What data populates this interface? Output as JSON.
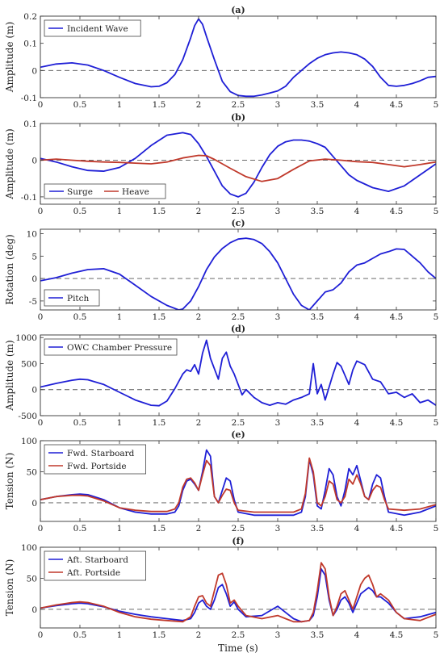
{
  "figure": {
    "xlabel": "Time (s)"
  },
  "chart_data": [
    {
      "type": "line",
      "panel": "(a)",
      "title": "(a)",
      "ylabel": "Amplitude (m)",
      "xlim": [
        0,
        5
      ],
      "ylim": [
        -0.1,
        0.2
      ],
      "xticks": [
        0,
        0.5,
        1,
        1.5,
        2,
        2.5,
        3,
        3.5,
        4,
        4.5,
        5
      ],
      "yticks": [
        -0.1,
        0,
        0.1,
        0.2
      ],
      "yticklabels": [
        "-0.1",
        "0",
        "0.1",
        "0.2"
      ],
      "zero_line": true,
      "legend_position": "top-left",
      "series": [
        {
          "name": "Incident Wave",
          "color": "#1f1fd6",
          "x": [
            0,
            0.2,
            0.4,
            0.6,
            0.8,
            1.0,
            1.2,
            1.4,
            1.5,
            1.6,
            1.7,
            1.8,
            1.9,
            1.95,
            2.0,
            2.05,
            2.1,
            2.2,
            2.3,
            2.4,
            2.5,
            2.6,
            2.7,
            2.8,
            2.9,
            3.0,
            3.1,
            3.2,
            3.3,
            3.4,
            3.5,
            3.6,
            3.7,
            3.8,
            3.9,
            4.0,
            4.1,
            4.2,
            4.3,
            4.4,
            4.5,
            4.6,
            4.7,
            4.8,
            4.9,
            5.0
          ],
          "y": [
            0.012,
            0.024,
            0.028,
            0.02,
            0.0,
            -0.025,
            -0.048,
            -0.06,
            -0.058,
            -0.045,
            -0.015,
            0.04,
            0.12,
            0.165,
            0.19,
            0.17,
            0.125,
            0.04,
            -0.04,
            -0.078,
            -0.092,
            -0.095,
            -0.095,
            -0.09,
            -0.083,
            -0.075,
            -0.058,
            -0.025,
            0.0,
            0.025,
            0.045,
            0.058,
            0.065,
            0.068,
            0.065,
            0.058,
            0.042,
            0.015,
            -0.025,
            -0.055,
            -0.058,
            -0.055,
            -0.048,
            -0.038,
            -0.025,
            -0.022
          ]
        }
      ]
    },
    {
      "type": "line",
      "panel": "(b)",
      "title": "(b)",
      "ylabel": "Amplitude (m)",
      "xlim": [
        0,
        5
      ],
      "ylim": [
        -0.12,
        0.1
      ],
      "xticks": [
        0,
        0.5,
        1,
        1.5,
        2,
        2.5,
        3,
        3.5,
        4,
        4.5,
        5
      ],
      "yticks": [
        -0.1,
        0,
        0.1
      ],
      "yticklabels": [
        "-0.1",
        "0",
        "0.1"
      ],
      "zero_line": true,
      "legend_position": "bottom-left",
      "series": [
        {
          "name": "Surge",
          "color": "#1f1fd6",
          "x": [
            0,
            0.2,
            0.4,
            0.6,
            0.8,
            1.0,
            1.2,
            1.4,
            1.6,
            1.8,
            1.9,
            2.0,
            2.1,
            2.2,
            2.3,
            2.4,
            2.5,
            2.6,
            2.7,
            2.8,
            2.9,
            3.0,
            3.1,
            3.2,
            3.3,
            3.4,
            3.5,
            3.6,
            3.7,
            3.8,
            3.9,
            4.0,
            4.2,
            4.4,
            4.6,
            4.8,
            5.0
          ],
          "y": [
            0.005,
            -0.005,
            -0.018,
            -0.028,
            -0.03,
            -0.02,
            0.005,
            0.04,
            0.068,
            0.075,
            0.07,
            0.045,
            0.01,
            -0.03,
            -0.07,
            -0.092,
            -0.1,
            -0.09,
            -0.06,
            -0.02,
            0.015,
            0.038,
            0.05,
            0.055,
            0.055,
            0.052,
            0.045,
            0.035,
            0.01,
            -0.015,
            -0.04,
            -0.055,
            -0.075,
            -0.085,
            -0.07,
            -0.04,
            -0.01
          ]
        },
        {
          "name": "Heave",
          "color": "#c0392b",
          "x": [
            0,
            0.2,
            0.4,
            0.6,
            0.8,
            1.0,
            1.2,
            1.4,
            1.6,
            1.8,
            2.0,
            2.1,
            2.2,
            2.4,
            2.6,
            2.8,
            3.0,
            3.2,
            3.4,
            3.6,
            3.8,
            4.0,
            4.2,
            4.4,
            4.6,
            4.8,
            5.0
          ],
          "y": [
            0.0,
            0.003,
            0.0,
            -0.003,
            -0.005,
            -0.006,
            -0.008,
            -0.01,
            -0.005,
            0.006,
            0.013,
            0.012,
            0.002,
            -0.022,
            -0.045,
            -0.058,
            -0.05,
            -0.025,
            -0.002,
            0.003,
            0.0,
            -0.004,
            -0.006,
            -0.012,
            -0.018,
            -0.012,
            -0.005
          ]
        }
      ]
    },
    {
      "type": "line",
      "panel": "(c)",
      "title": "(c)",
      "ylabel": "Rotation (deg)",
      "xlim": [
        0,
        5
      ],
      "ylim": [
        -7,
        11
      ],
      "xticks": [
        0,
        0.5,
        1,
        1.5,
        2,
        2.5,
        3,
        3.5,
        4,
        4.5,
        5
      ],
      "yticks": [
        -5,
        0,
        5,
        10
      ],
      "yticklabels": [
        "-5",
        "0",
        "5",
        "10"
      ],
      "zero_line": true,
      "legend_position": "bottom-left",
      "series": [
        {
          "name": "Pitch",
          "color": "#1f1fd6",
          "x": [
            0,
            0.2,
            0.4,
            0.6,
            0.8,
            1.0,
            1.2,
            1.4,
            1.6,
            1.75,
            1.8,
            1.9,
            2.0,
            2.1,
            2.2,
            2.3,
            2.4,
            2.5,
            2.6,
            2.7,
            2.8,
            2.9,
            3.0,
            3.1,
            3.2,
            3.3,
            3.4,
            3.5,
            3.6,
            3.7,
            3.8,
            3.9,
            4.0,
            4.1,
            4.2,
            4.3,
            4.4,
            4.5,
            4.6,
            4.7,
            4.8,
            4.9,
            5.0
          ],
          "y": [
            -0.5,
            0.2,
            1.2,
            2.0,
            2.2,
            1.0,
            -1.5,
            -4.0,
            -6.0,
            -7.0,
            -6.8,
            -5.0,
            -1.8,
            2.0,
            4.8,
            6.7,
            8.0,
            8.8,
            9.0,
            8.7,
            7.8,
            6.0,
            3.5,
            0.0,
            -3.5,
            -6.0,
            -7.0,
            -5.0,
            -3.0,
            -2.5,
            -1.0,
            1.5,
            3.0,
            3.5,
            4.5,
            5.5,
            6.0,
            6.6,
            6.5,
            5.0,
            3.5,
            1.5,
            0.0
          ]
        }
      ]
    },
    {
      "type": "line",
      "panel": "(d)",
      "title": "(d)",
      "ylabel": "Amplitude (m)",
      "xlim": [
        0,
        5
      ],
      "ylim": [
        -500,
        1050
      ],
      "xticks": [
        0,
        0.5,
        1,
        1.5,
        2,
        2.5,
        3,
        3.5,
        4,
        4.5,
        5
      ],
      "yticks": [
        -500,
        0,
        500,
        1000
      ],
      "yticklabels": [
        "-500",
        "0",
        "500",
        "1000"
      ],
      "zero_line": true,
      "legend_position": "top-left",
      "series": [
        {
          "name": "OWC Chamber Pressure",
          "color": "#1f1fd6",
          "x": [
            0,
            0.2,
            0.4,
            0.5,
            0.6,
            0.8,
            1.0,
            1.2,
            1.4,
            1.5,
            1.6,
            1.7,
            1.8,
            1.85,
            1.9,
            1.95,
            2.0,
            2.05,
            2.1,
            2.15,
            2.2,
            2.25,
            2.3,
            2.35,
            2.4,
            2.45,
            2.5,
            2.55,
            2.6,
            2.7,
            2.8,
            2.9,
            3.0,
            3.1,
            3.2,
            3.3,
            3.4,
            3.45,
            3.5,
            3.55,
            3.6,
            3.7,
            3.75,
            3.8,
            3.9,
            3.95,
            4.0,
            4.1,
            4.2,
            4.3,
            4.4,
            4.5,
            4.6,
            4.7,
            4.8,
            4.9,
            5.0
          ],
          "y": [
            50,
            120,
            180,
            200,
            190,
            100,
            -50,
            -200,
            -300,
            -310,
            -220,
            20,
            300,
            380,
            350,
            480,
            300,
            700,
            950,
            600,
            400,
            200,
            600,
            720,
            450,
            300,
            100,
            -100,
            0,
            -150,
            -250,
            -300,
            -250,
            -280,
            -200,
            -150,
            -80,
            500,
            -80,
            100,
            -200,
            300,
            520,
            450,
            100,
            380,
            550,
            480,
            200,
            150,
            -80,
            -50,
            -150,
            -80,
            -250,
            -200,
            -300
          ]
        }
      ]
    },
    {
      "type": "line",
      "panel": "(e)",
      "title": "(e)",
      "ylabel": "Tension (N)",
      "xlim": [
        0,
        5
      ],
      "ylim": [
        -30,
        100
      ],
      "xticks": [
        0,
        0.5,
        1,
        1.5,
        2,
        2.5,
        3,
        3.5,
        4,
        4.5,
        5
      ],
      "yticks": [
        0,
        50,
        100
      ],
      "yticklabels": [
        "0",
        "50",
        "100"
      ],
      "zero_line": true,
      "legend_position": "top-left",
      "series": [
        {
          "name": "Fwd. Starboard",
          "color": "#1f1fd6",
          "x": [
            0,
            0.2,
            0.4,
            0.5,
            0.6,
            0.8,
            1.0,
            1.2,
            1.4,
            1.6,
            1.7,
            1.75,
            1.8,
            1.85,
            1.9,
            1.95,
            2.0,
            2.05,
            2.1,
            2.15,
            2.2,
            2.25,
            2.3,
            2.35,
            2.4,
            2.45,
            2.5,
            2.7,
            3.0,
            3.2,
            3.3,
            3.35,
            3.4,
            3.45,
            3.5,
            3.55,
            3.6,
            3.65,
            3.7,
            3.75,
            3.8,
            3.85,
            3.9,
            3.95,
            4.0,
            4.05,
            4.1,
            4.15,
            4.2,
            4.25,
            4.3,
            4.35,
            4.4,
            4.6,
            4.8,
            5.0
          ],
          "y": [
            5,
            10,
            13,
            14,
            13,
            5,
            -8,
            -15,
            -18,
            -18,
            -15,
            -5,
            20,
            35,
            38,
            30,
            20,
            50,
            85,
            75,
            10,
            0,
            20,
            40,
            35,
            5,
            -15,
            -20,
            -20,
            -20,
            -15,
            10,
            70,
            45,
            -5,
            -10,
            20,
            55,
            45,
            10,
            -5,
            20,
            55,
            45,
            60,
            35,
            10,
            5,
            30,
            45,
            40,
            10,
            -15,
            -20,
            -15,
            -5
          ]
        },
        {
          "name": "Fwd. Portside",
          "color": "#c0392b",
          "x": [
            0,
            0.2,
            0.4,
            0.5,
            0.6,
            0.8,
            1.0,
            1.2,
            1.4,
            1.6,
            1.7,
            1.75,
            1.8,
            1.85,
            1.9,
            1.95,
            2.0,
            2.05,
            2.1,
            2.15,
            2.2,
            2.25,
            2.3,
            2.35,
            2.4,
            2.45,
            2.5,
            2.7,
            3.0,
            3.2,
            3.3,
            3.35,
            3.4,
            3.45,
            3.5,
            3.55,
            3.6,
            3.65,
            3.7,
            3.75,
            3.8,
            3.85,
            3.9,
            3.95,
            4.0,
            4.05,
            4.1,
            4.15,
            4.2,
            4.25,
            4.3,
            4.35,
            4.4,
            4.6,
            4.8,
            5.0
          ],
          "y": [
            5,
            10,
            12,
            12,
            11,
            3,
            -8,
            -12,
            -14,
            -14,
            -10,
            0,
            25,
            38,
            40,
            32,
            20,
            45,
            68,
            60,
            10,
            0,
            12,
            22,
            20,
            0,
            -12,
            -15,
            -15,
            -15,
            -10,
            15,
            72,
            50,
            0,
            -5,
            10,
            35,
            30,
            5,
            0,
            10,
            38,
            30,
            45,
            30,
            10,
            5,
            20,
            28,
            25,
            5,
            -10,
            -12,
            -10,
            -3
          ]
        }
      ]
    },
    {
      "type": "line",
      "panel": "(f)",
      "title": "(f)",
      "ylabel": "Tension (N)",
      "xlim": [
        0,
        5
      ],
      "ylim": [
        -30,
        100
      ],
      "xticks": [
        0,
        0.5,
        1,
        1.5,
        2,
        2.5,
        3,
        3.5,
        4,
        4.5,
        5
      ],
      "yticks": [
        0,
        50,
        100
      ],
      "yticklabels": [
        "0",
        "50",
        "100"
      ],
      "zero_line": true,
      "legend_position": "top-left",
      "series": [
        {
          "name": "Aft. Starboard",
          "color": "#1f1fd6",
          "x": [
            0,
            0.2,
            0.4,
            0.5,
            0.6,
            0.8,
            1.0,
            1.2,
            1.4,
            1.6,
            1.8,
            1.9,
            1.95,
            2.0,
            2.05,
            2.1,
            2.15,
            2.2,
            2.25,
            2.3,
            2.35,
            2.4,
            2.45,
            2.5,
            2.6,
            2.8,
            3.0,
            3.1,
            3.2,
            3.3,
            3.4,
            3.45,
            3.5,
            3.55,
            3.6,
            3.65,
            3.7,
            3.75,
            3.8,
            3.85,
            3.9,
            3.95,
            4.0,
            4.05,
            4.1,
            4.15,
            4.2,
            4.25,
            4.3,
            4.4,
            4.5,
            4.6,
            4.8,
            5.0
          ],
          "y": [
            2,
            6,
            9,
            10,
            9,
            4,
            -3,
            -8,
            -12,
            -15,
            -18,
            -15,
            -5,
            10,
            15,
            5,
            0,
            15,
            35,
            40,
            25,
            5,
            12,
            0,
            -12,
            -10,
            5,
            -5,
            -15,
            -20,
            -18,
            -10,
            20,
            65,
            55,
            15,
            -10,
            0,
            15,
            20,
            10,
            -5,
            10,
            25,
            30,
            35,
            30,
            20,
            20,
            10,
            -5,
            -15,
            -12,
            -5
          ]
        },
        {
          "name": "Aft. Portside",
          "color": "#c0392b",
          "x": [
            0,
            0.2,
            0.4,
            0.5,
            0.6,
            0.8,
            1.0,
            1.2,
            1.4,
            1.6,
            1.8,
            1.9,
            1.95,
            2.0,
            2.05,
            2.1,
            2.15,
            2.2,
            2.25,
            2.3,
            2.35,
            2.4,
            2.45,
            2.5,
            2.6,
            2.8,
            3.0,
            3.1,
            3.2,
            3.3,
            3.4,
            3.45,
            3.5,
            3.55,
            3.6,
            3.65,
            3.7,
            3.75,
            3.8,
            3.85,
            3.9,
            3.95,
            4.0,
            4.05,
            4.1,
            4.15,
            4.2,
            4.25,
            4.3,
            4.4,
            4.5,
            4.6,
            4.8,
            5.0
          ],
          "y": [
            2,
            7,
            11,
            12,
            11,
            5,
            -5,
            -12,
            -16,
            -18,
            -20,
            -12,
            5,
            20,
            22,
            10,
            5,
            30,
            55,
            58,
            40,
            10,
            15,
            5,
            -10,
            -15,
            -10,
            -15,
            -20,
            -20,
            -18,
            -5,
            30,
            75,
            65,
            20,
            -10,
            5,
            25,
            30,
            15,
            0,
            20,
            40,
            50,
            55,
            40,
            20,
            25,
            15,
            -5,
            -15,
            -18,
            -8
          ]
        }
      ]
    }
  ]
}
